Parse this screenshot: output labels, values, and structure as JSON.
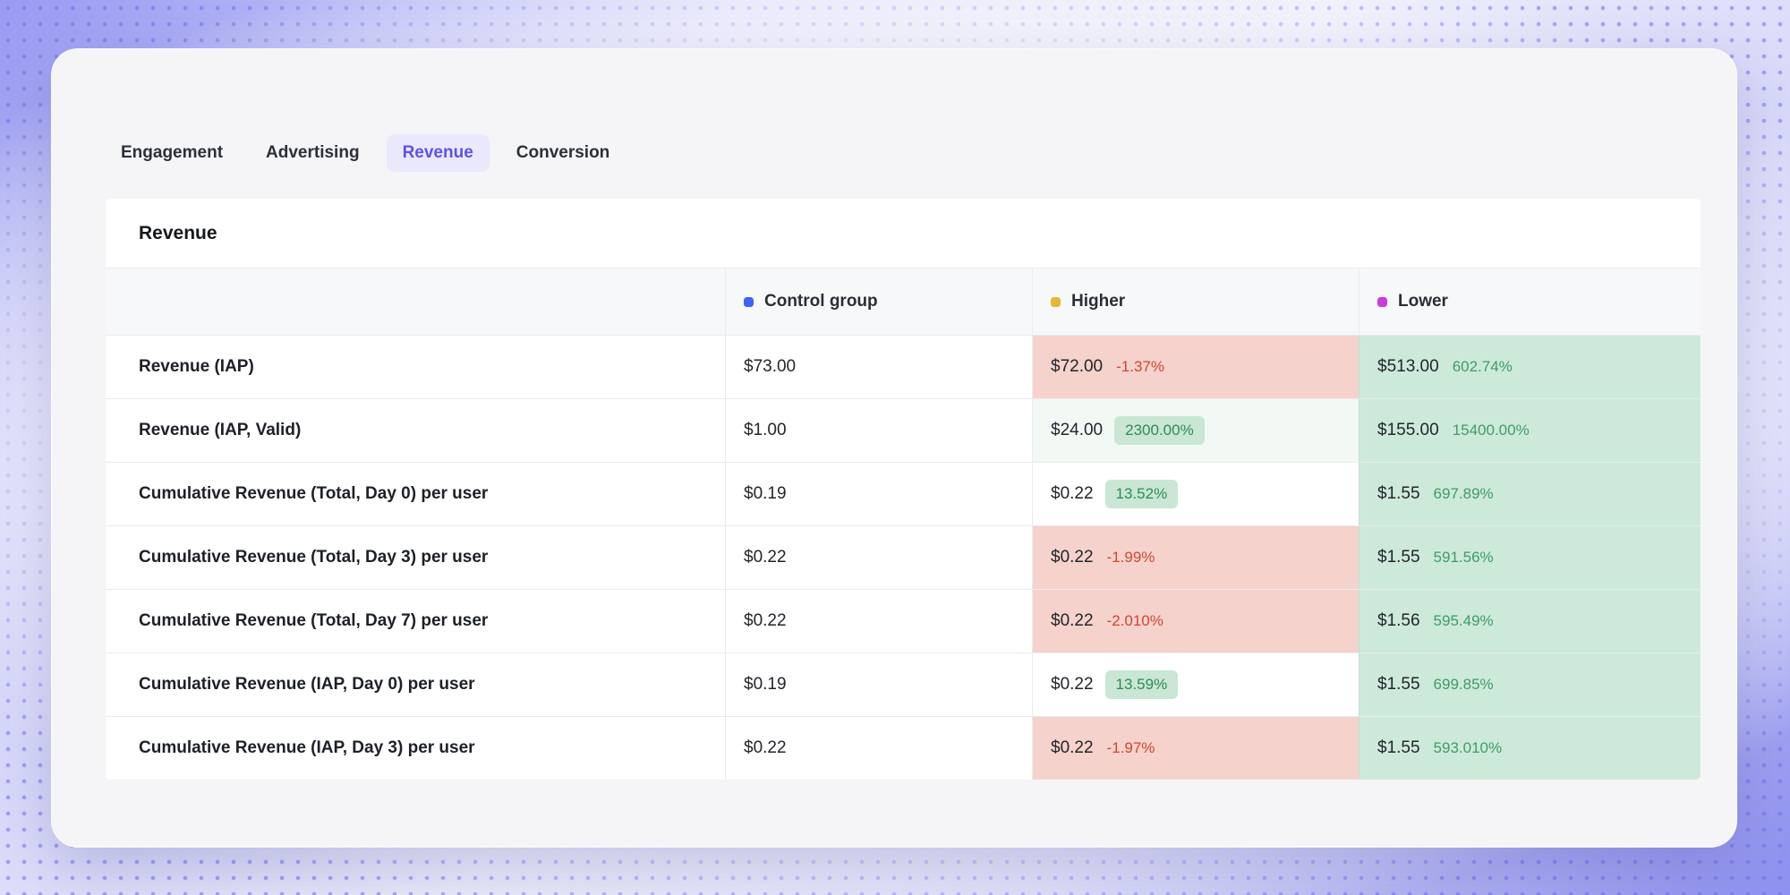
{
  "tabs": [
    {
      "label": "Engagement",
      "active": false
    },
    {
      "label": "Advertising",
      "active": false
    },
    {
      "label": "Revenue",
      "active": true
    },
    {
      "label": "Conversion",
      "active": false
    }
  ],
  "table": {
    "title": "Revenue",
    "columns": [
      {
        "label": ""
      },
      {
        "label": "Control group",
        "dot_color": "#3E63F4"
      },
      {
        "label": "Higher",
        "dot_color": "#E7B53C"
      },
      {
        "label": "Lower",
        "dot_color": "#C93CDD"
      }
    ],
    "rows": [
      {
        "metric": "Revenue (IAP)",
        "control": "$73.00",
        "higher_value": "$72.00",
        "higher_change": "-1.37%",
        "higher_tone": "negative",
        "lower_value": "$513.00",
        "lower_change": "602.74%"
      },
      {
        "metric": "Revenue (IAP, Valid)",
        "control": "$1.00",
        "higher_value": "$24.00",
        "higher_change": "2300.00%",
        "higher_tone": "positive-badge",
        "lower_value": "$155.00",
        "lower_change": "15400.00%"
      },
      {
        "metric": "Cumulative Revenue (Total, Day 0) per user",
        "control": "$0.19",
        "higher_value": "$0.22",
        "higher_change": "13.52%",
        "higher_tone": "positive-badge",
        "lower_value": "$1.55",
        "lower_change": "697.89%"
      },
      {
        "metric": "Cumulative Revenue (Total, Day 3) per user",
        "control": "$0.22",
        "higher_value": "$0.22",
        "higher_change": "-1.99%",
        "higher_tone": "negative",
        "lower_value": "$1.55",
        "lower_change": "591.56%"
      },
      {
        "metric": "Cumulative Revenue (Total, Day 7) per user",
        "control": "$0.22",
        "higher_value": "$0.22",
        "higher_change": "-2.010%",
        "higher_tone": "negative",
        "lower_value": "$1.56",
        "lower_change": "595.49%"
      },
      {
        "metric": "Cumulative Revenue (IAP, Day 0) per user",
        "control": "$0.19",
        "higher_value": "$0.22",
        "higher_change": "13.59%",
        "higher_tone": "positive-badge",
        "lower_value": "$1.55",
        "lower_change": "699.85%"
      },
      {
        "metric": "Cumulative Revenue (IAP, Day 3) per user",
        "control": "$0.22",
        "higher_value": "$0.22",
        "higher_change": "-1.97%",
        "higher_tone": "negative",
        "lower_value": "$1.55",
        "lower_change": "593.010%"
      }
    ]
  },
  "colors": {
    "accent_purple": "#5E52E6",
    "tab_active_bg": "#EAE8FB",
    "negative_cell_bg": "#F5D2CB",
    "negative_text": "#CF4637",
    "positive_badge_bg": "#C9E7D4",
    "positive_text": "#2E8B57",
    "lower_column_bg": "#CDE9DA",
    "card_bg": "#F5F5F7"
  }
}
